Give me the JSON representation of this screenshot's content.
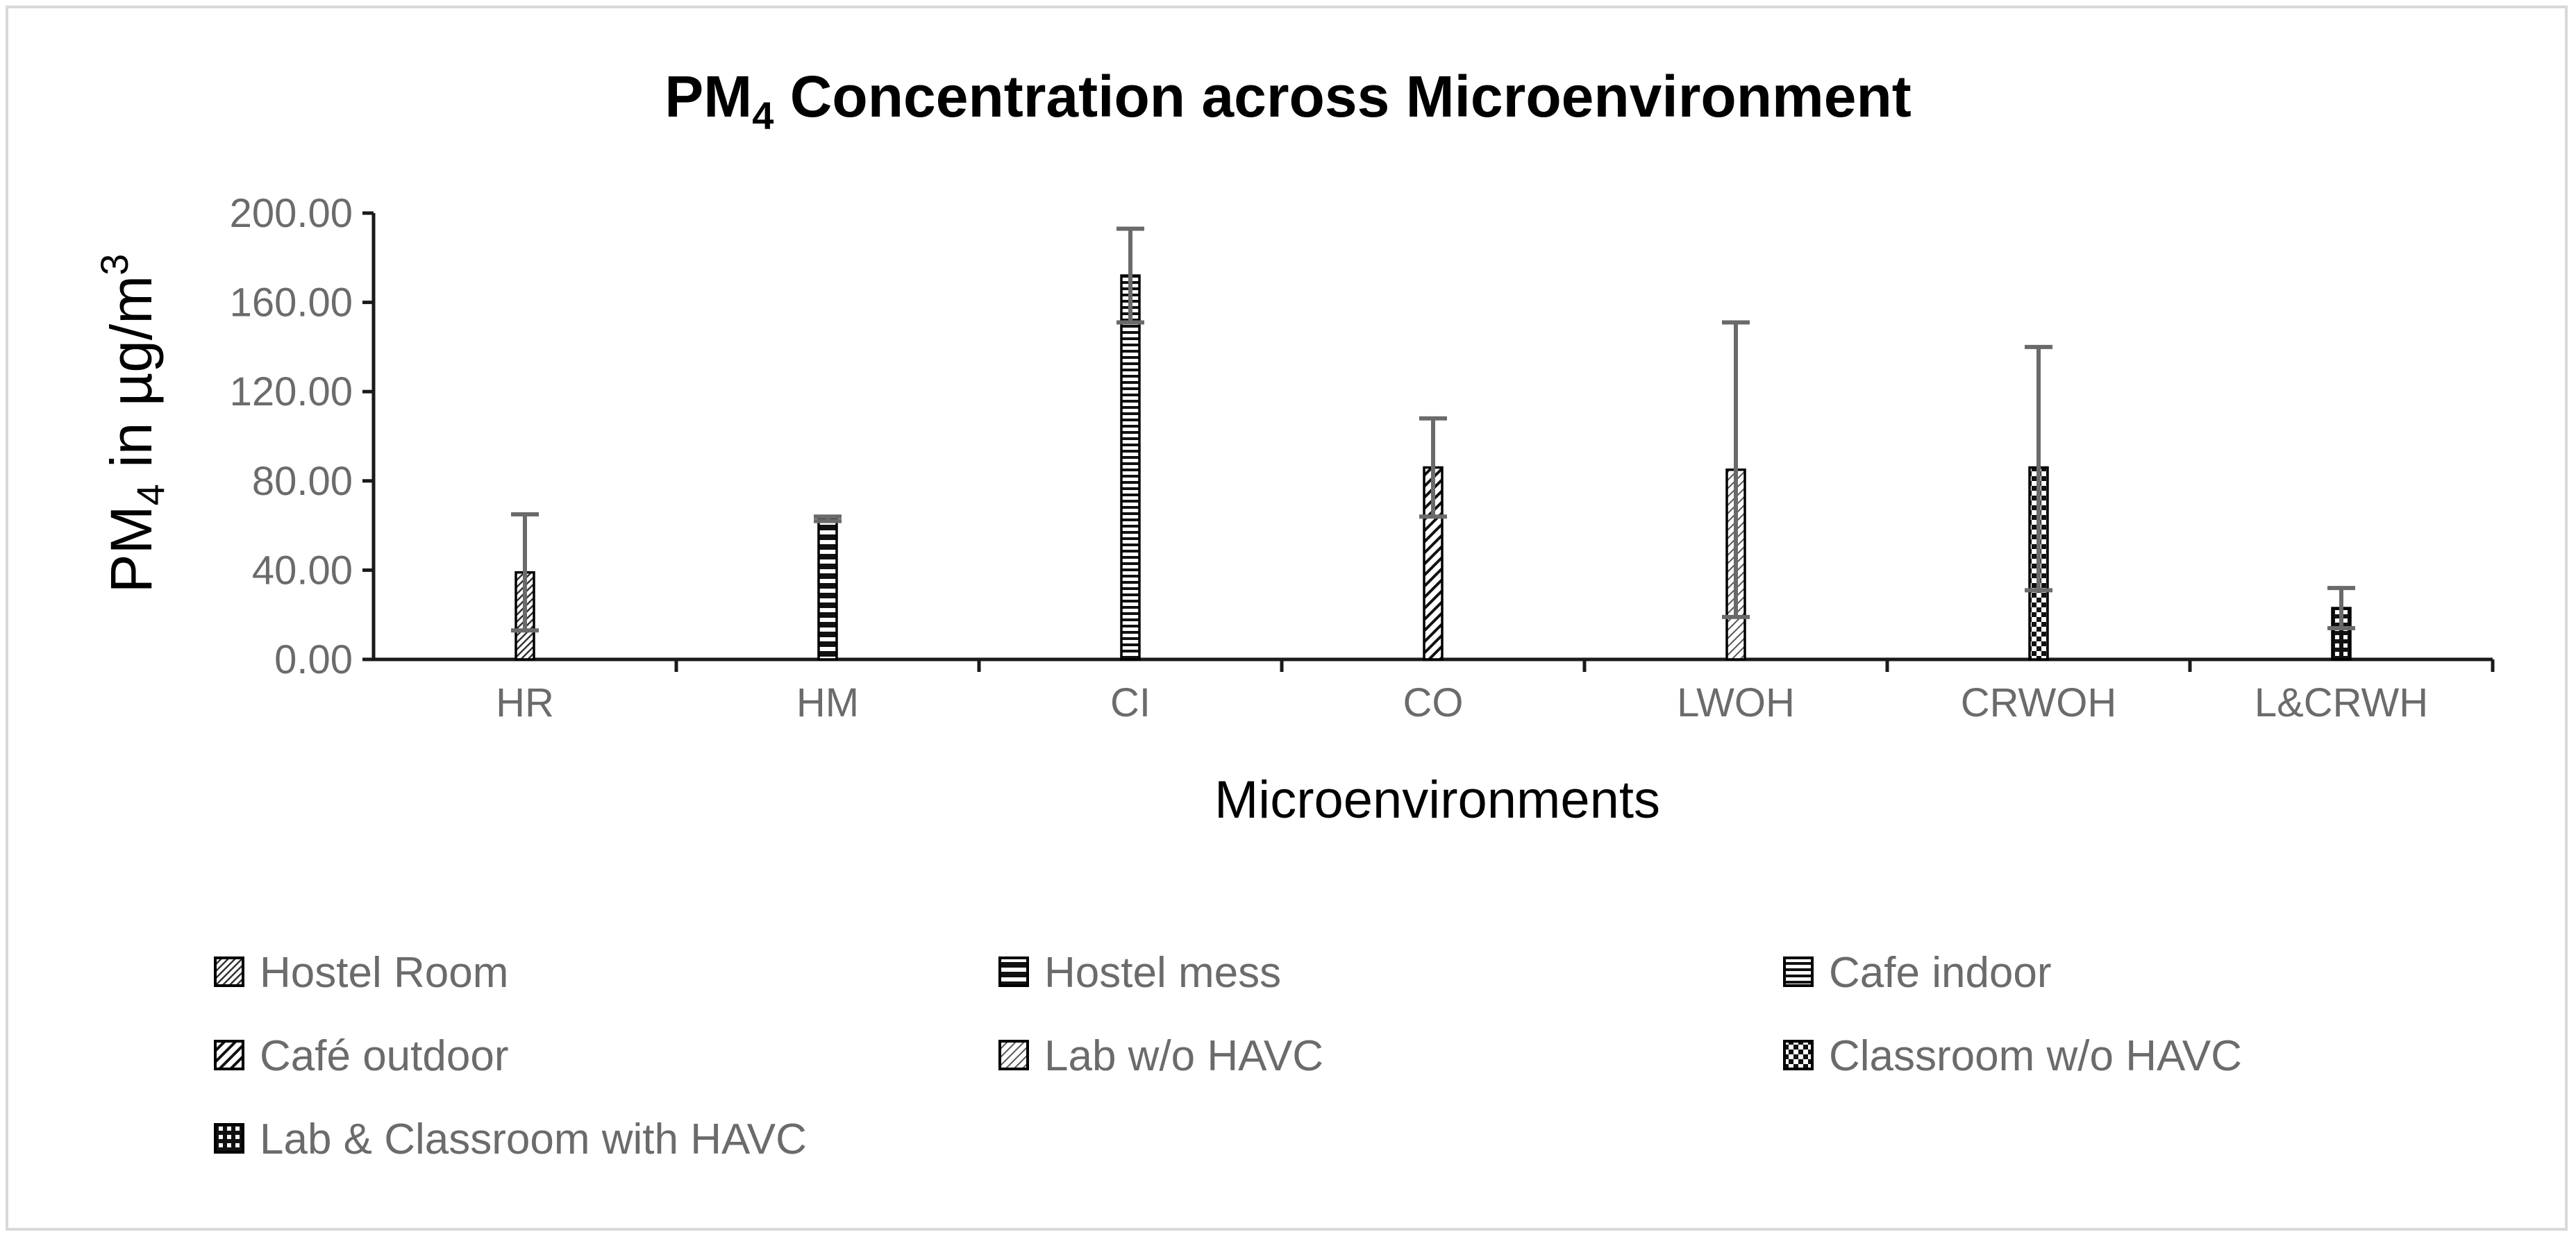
{
  "chart_data": {
    "type": "bar",
    "title_parts": {
      "main_before": "PM",
      "sub": "4",
      "main_after": " Concentration across Microenvironment"
    },
    "ylabel_parts": {
      "before": "PM",
      "sub": "4",
      "after": " in µg/m",
      "sup": "3"
    },
    "xlabel": "Microenvironments",
    "ylim": [
      0,
      200
    ],
    "yticks": [
      "0.00",
      "40.00",
      "80.00",
      "120.00",
      "160.00",
      "200.00"
    ],
    "ytick_values": [
      0,
      40,
      80,
      120,
      160,
      200
    ],
    "categories": [
      "HR",
      "HM",
      "CI",
      "CO",
      "LWOH",
      "CRWOH",
      "L&CRWH"
    ],
    "series": [
      {
        "name": "Hostel Room",
        "category": "HR",
        "value": 39,
        "err_low": 13,
        "err_high": 65,
        "pattern": "diag-fine"
      },
      {
        "name": "Hostel mess",
        "category": "HM",
        "value": 63,
        "err_low": 62,
        "err_high": 64,
        "pattern": "hbars"
      },
      {
        "name": "Cafe indoor",
        "category": "CI",
        "value": 172,
        "err_low": 151,
        "err_high": 193,
        "pattern": "hlines"
      },
      {
        "name": "Café outdoor",
        "category": "CO",
        "value": 86,
        "err_low": 64,
        "err_high": 108,
        "pattern": "diag-wide"
      },
      {
        "name": "Lab w/o HAVC",
        "category": "LWOH",
        "value": 85,
        "err_low": 19,
        "err_high": 151,
        "pattern": "diag-light"
      },
      {
        "name": "Classroom w/o HAVC",
        "category": "CRWOH",
        "value": 86,
        "err_low": 31,
        "err_high": 140,
        "pattern": "checker"
      },
      {
        "name": "Lab & Classroom with HAVC",
        "category": "L&CRWH",
        "value": 23,
        "err_low": 14,
        "err_high": 32,
        "pattern": "dots"
      }
    ],
    "grid": false,
    "legend_position": "bottom"
  }
}
